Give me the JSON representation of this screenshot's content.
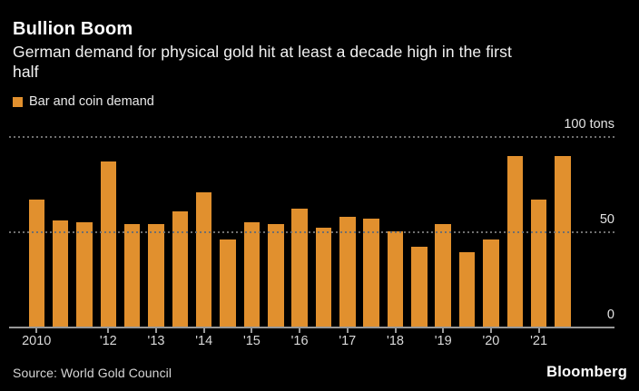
{
  "header": {
    "title": "Bullion Boom",
    "subtitle_line1": "German demand for physical gold hit at least a decade high in the first",
    "subtitle_line2": "half"
  },
  "legend": {
    "label": "Bar and coin demand",
    "swatch_color": "#E1902E"
  },
  "axis": {
    "y_top_label": "100 tons",
    "y_mid_label": "50",
    "y_zero_label": "0"
  },
  "footer": {
    "source": "Source: World Gold Council",
    "brand": "Bloomberg"
  },
  "chart_data": {
    "type": "bar",
    "title": "Bullion Boom",
    "subtitle": "German demand for physical gold hit at least a decade high in the first half",
    "ylabel": "tons",
    "ylim": [
      0,
      100
    ],
    "gridlines": [
      50,
      100
    ],
    "grid_style": "dotted",
    "legend_position": "top-left",
    "background_color": "#000000",
    "bar_color": "#E1902E",
    "series": [
      {
        "name": "Bar and coin demand",
        "unit": "tons",
        "values": [
          67,
          56,
          55,
          87,
          54,
          54,
          61,
          71,
          46,
          55,
          54,
          62,
          52,
          58,
          57,
          50,
          42,
          54,
          39,
          46,
          90,
          67,
          90
        ]
      }
    ],
    "categories": [
      "2010 H1",
      "2010 H2",
      "2011 H1",
      "2011 H2",
      "2012 H1",
      "2012 H2",
      "2013 H1",
      "2013 H2",
      "2014 H1",
      "2014 H2",
      "2015 H1",
      "2015 H2",
      "2016 H1",
      "2016 H2",
      "2017 H1",
      "2017 H2",
      "2018 H1",
      "2018 H2",
      "2019 H1",
      "2019 H2",
      "2020 H1",
      "2020 H2",
      "2021 H1"
    ],
    "x_tick_labels": [
      "2010",
      "'12",
      "'13",
      "'14",
      "'15",
      "'16",
      "'17",
      "'18",
      "'19",
      "'20",
      "'21"
    ],
    "x_tick_bar_indices": [
      0,
      3,
      5,
      7,
      9,
      11,
      13,
      15,
      17,
      19,
      21
    ]
  }
}
